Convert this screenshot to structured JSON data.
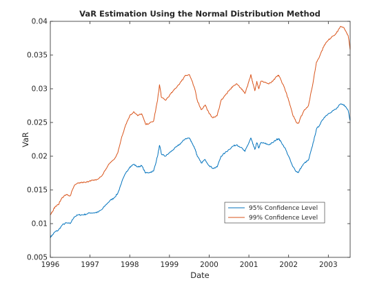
{
  "chart_data": {
    "type": "line",
    "title": "VaR Estimation Using the Normal Distribution Method",
    "xlabel": "Date",
    "ylabel": "VaR",
    "xlim": [
      1996.0,
      2003.55
    ],
    "ylim": [
      0.005,
      0.04
    ],
    "x_ticks": [
      1996,
      1997,
      1998,
      1999,
      2000,
      2001,
      2002,
      2003
    ],
    "x_tick_labels": [
      "1996",
      "1997",
      "1998",
      "1999",
      "2000",
      "2001",
      "2002",
      "2003"
    ],
    "y_ticks": [
      0.005,
      0.01,
      0.015,
      0.02,
      0.025,
      0.03,
      0.035,
      0.04
    ],
    "y_tick_labels": [
      "0.005",
      "0.01",
      "0.015",
      "0.02",
      "0.025",
      "0.03",
      "0.035",
      "0.04"
    ],
    "grid": false,
    "legend_position": "lower-right",
    "series": [
      {
        "name": "95% Confidence Level",
        "color": "#0072BD",
        "x": [
          1996.0,
          1996.05,
          1996.12,
          1996.2,
          1996.3,
          1996.4,
          1996.5,
          1996.6,
          1996.7,
          1996.8,
          1996.9,
          1997.0,
          1997.1,
          1997.2,
          1997.3,
          1997.4,
          1997.5,
          1997.6,
          1997.7,
          1997.8,
          1997.9,
          1998.0,
          1998.1,
          1998.2,
          1998.3,
          1998.4,
          1998.5,
          1998.6,
          1998.7,
          1998.75,
          1998.8,
          1998.9,
          1999.0,
          1999.1,
          1999.2,
          1999.3,
          1999.4,
          1999.5,
          1999.55,
          1999.65,
          1999.7,
          1999.8,
          1999.9,
          2000.0,
          2000.1,
          2000.2,
          2000.3,
          2000.4,
          2000.5,
          2000.6,
          2000.7,
          2000.8,
          2000.9,
          2001.0,
          2001.05,
          2001.1,
          2001.15,
          2001.2,
          2001.25,
          2001.3,
          2001.4,
          2001.5,
          2001.6,
          2001.7,
          2001.75,
          2001.8,
          2001.9,
          2002.0,
          2002.1,
          2002.2,
          2002.25,
          2002.3,
          2002.4,
          2002.5,
          2002.6,
          2002.7,
          2002.8,
          2002.9,
          2003.0,
          2003.1,
          2003.2,
          2003.3,
          2003.4,
          2003.5,
          2003.55
        ],
        "values": [
          0.008,
          0.0083,
          0.0088,
          0.009,
          0.0098,
          0.0101,
          0.01,
          0.011,
          0.0113,
          0.0113,
          0.0114,
          0.0116,
          0.0116,
          0.0117,
          0.0121,
          0.0128,
          0.0134,
          0.0138,
          0.0145,
          0.0162,
          0.0175,
          0.0184,
          0.0188,
          0.0184,
          0.0186,
          0.0175,
          0.0176,
          0.0178,
          0.02,
          0.0216,
          0.0203,
          0.02,
          0.0205,
          0.021,
          0.0215,
          0.022,
          0.0226,
          0.0227,
          0.0222,
          0.021,
          0.02,
          0.019,
          0.0195,
          0.0186,
          0.0182,
          0.0184,
          0.02,
          0.0205,
          0.021,
          0.0215,
          0.0217,
          0.0213,
          0.0207,
          0.022,
          0.0227,
          0.0218,
          0.021,
          0.022,
          0.0212,
          0.022,
          0.0219,
          0.0217,
          0.022,
          0.0225,
          0.0226,
          0.0222,
          0.0213,
          0.02,
          0.0185,
          0.0177,
          0.0176,
          0.0182,
          0.019,
          0.0194,
          0.0215,
          0.024,
          0.0248,
          0.0258,
          0.0263,
          0.0267,
          0.027,
          0.0277,
          0.0276,
          0.0268,
          0.0253
        ]
      },
      {
        "name": "99% Confidence Level",
        "color": "#D95319",
        "x": [
          1996.0,
          1996.05,
          1996.12,
          1996.2,
          1996.3,
          1996.4,
          1996.5,
          1996.6,
          1996.7,
          1996.8,
          1996.9,
          1997.0,
          1997.1,
          1997.2,
          1997.3,
          1997.4,
          1997.5,
          1997.6,
          1997.7,
          1997.8,
          1997.9,
          1998.0,
          1998.1,
          1998.2,
          1998.3,
          1998.4,
          1998.5,
          1998.6,
          1998.7,
          1998.75,
          1998.8,
          1998.9,
          1999.0,
          1999.1,
          1999.2,
          1999.3,
          1999.4,
          1999.5,
          1999.55,
          1999.65,
          1999.7,
          1999.8,
          1999.9,
          2000.0,
          2000.1,
          2000.2,
          2000.3,
          2000.4,
          2000.5,
          2000.6,
          2000.7,
          2000.8,
          2000.9,
          2001.0,
          2001.05,
          2001.1,
          2001.15,
          2001.2,
          2001.25,
          2001.3,
          2001.4,
          2001.5,
          2001.6,
          2001.7,
          2001.75,
          2001.8,
          2001.9,
          2002.0,
          2002.1,
          2002.2,
          2002.25,
          2002.3,
          2002.4,
          2002.5,
          2002.6,
          2002.7,
          2002.8,
          2002.9,
          2003.0,
          2003.1,
          2003.2,
          2003.3,
          2003.4,
          2003.5,
          2003.55
        ],
        "values": [
          0.0113,
          0.0118,
          0.0125,
          0.0128,
          0.0139,
          0.0143,
          0.0141,
          0.0156,
          0.016,
          0.0161,
          0.0161,
          0.0164,
          0.0164,
          0.0166,
          0.0171,
          0.0181,
          0.019,
          0.0195,
          0.0205,
          0.0229,
          0.0247,
          0.026,
          0.0266,
          0.026,
          0.0263,
          0.0247,
          0.0249,
          0.0252,
          0.0283,
          0.0306,
          0.0287,
          0.0283,
          0.029,
          0.0297,
          0.0304,
          0.0311,
          0.032,
          0.0321,
          0.0314,
          0.0297,
          0.0283,
          0.0269,
          0.0276,
          0.0263,
          0.0257,
          0.026,
          0.0283,
          0.029,
          0.0297,
          0.0304,
          0.0307,
          0.0301,
          0.0293,
          0.0311,
          0.0321,
          0.0308,
          0.0297,
          0.0311,
          0.03,
          0.0311,
          0.031,
          0.0307,
          0.0311,
          0.0318,
          0.032,
          0.0314,
          0.0301,
          0.0283,
          0.0262,
          0.025,
          0.0249,
          0.0257,
          0.0269,
          0.0275,
          0.0304,
          0.0339,
          0.0351,
          0.0365,
          0.0372,
          0.0378,
          0.0382,
          0.0392,
          0.039,
          0.0379,
          0.0358
        ]
      }
    ]
  }
}
